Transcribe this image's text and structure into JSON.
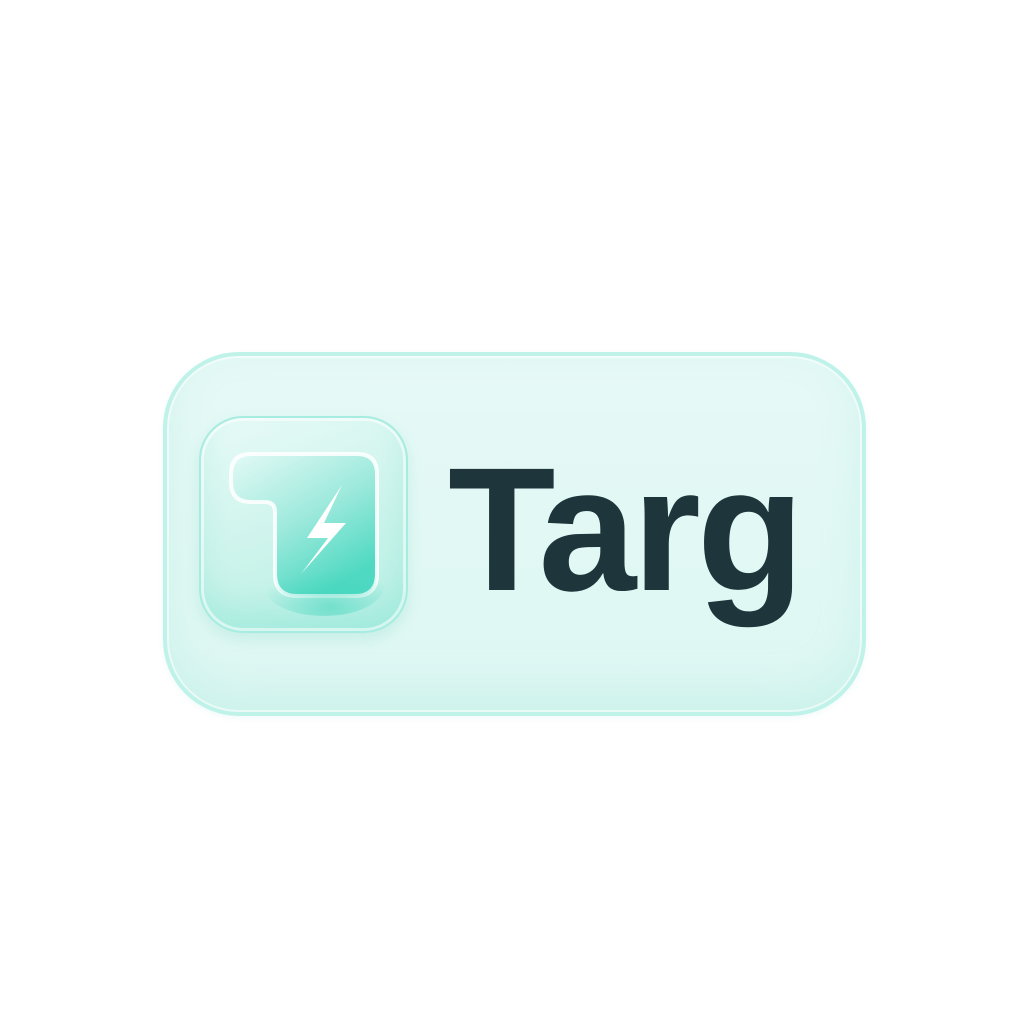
{
  "brand": {
    "name": "Targ",
    "logo_icon": "lightning-bolt-icon",
    "colors": {
      "wordmark": "#1d353b",
      "badge_fill": "#e3f8f5",
      "badge_border": "#bff2e9",
      "accent": "#4fd9c2"
    }
  }
}
